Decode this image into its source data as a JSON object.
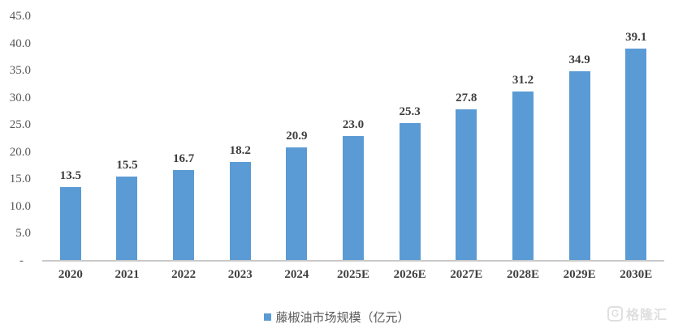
{
  "chart_data": {
    "type": "bar",
    "categories": [
      "2020",
      "2021",
      "2022",
      "2023",
      "2024",
      "2025E",
      "2026E",
      "2027E",
      "2028E",
      "2029E",
      "2030E"
    ],
    "values": [
      13.5,
      15.5,
      16.7,
      18.2,
      20.9,
      23.0,
      25.3,
      27.8,
      31.2,
      34.9,
      39.1
    ],
    "value_labels": [
      "13.5",
      "15.5",
      "16.7",
      "18.2",
      "20.9",
      "23.0",
      "25.3",
      "27.8",
      "31.2",
      "34.9",
      "39.1"
    ],
    "legend": "藤椒油市场规模（亿元）",
    "legend_position": "bottom",
    "y_ticks": [
      {
        "label": "45.0",
        "value": 45
      },
      {
        "label": "40.0",
        "value": 40
      },
      {
        "label": "35.0",
        "value": 35
      },
      {
        "label": "30.0",
        "value": 30
      },
      {
        "label": "25.0",
        "value": 25
      },
      {
        "label": "20.0",
        "value": 20
      },
      {
        "label": "15.0",
        "value": 15
      },
      {
        "label": "10.0",
        "value": 10
      },
      {
        "label": "5.0",
        "value": 5
      },
      {
        "label": "-",
        "value": 0
      }
    ],
    "ylim": [
      0,
      45
    ],
    "grid": false,
    "title": "",
    "xlabel": "",
    "ylabel": "",
    "bar_color": "#5B9BD5",
    "axis_line_color": "#C9C9C9",
    "value_label_color": "#3D3D3D",
    "tick_label_color": "#595959"
  },
  "watermark": {
    "logo_letter": "G",
    "text": "格隆汇"
  }
}
